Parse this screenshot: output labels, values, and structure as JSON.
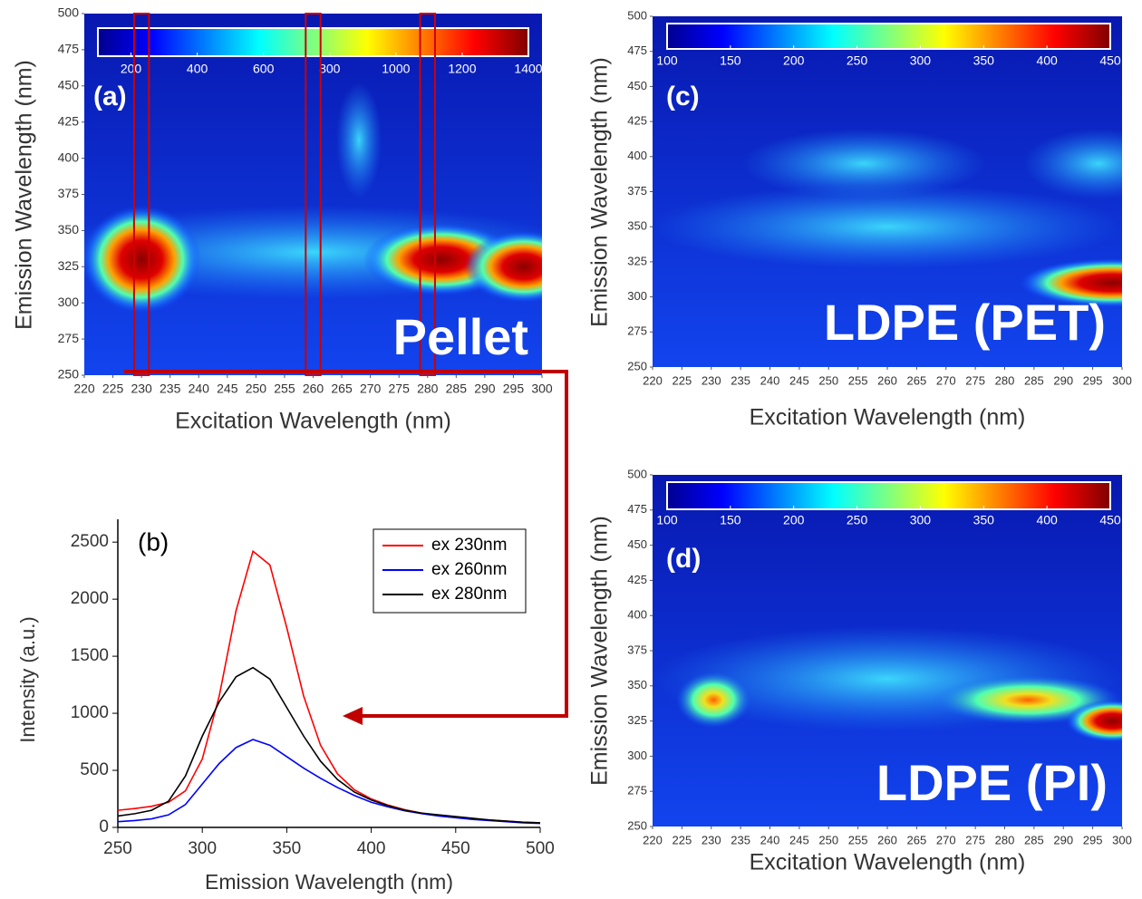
{
  "chart_data": [
    {
      "type": "heatmap",
      "xlabel": "Excitation Wavelength (nm)",
      "ylabel": "Emission Wavelength (nm)",
      "xlim": [
        220,
        300
      ],
      "xticks": [
        220,
        225,
        230,
        235,
        240,
        245,
        250,
        255,
        260,
        265,
        270,
        275,
        280,
        285,
        290,
        295,
        300
      ],
      "ylim": [
        250,
        500
      ],
      "yticks": [
        250,
        275,
        300,
        325,
        350,
        375,
        400,
        425,
        450,
        475,
        500
      ],
      "colorbar": {
        "lim": [
          100,
          1400
        ],
        "ticks": [
          200,
          400,
          600,
          800,
          1000,
          1200,
          1400
        ]
      },
      "highlight_x": [
        230,
        260,
        280
      ],
      "panel_label": "(a)",
      "sample_label": "Pellet"
    },
    {
      "type": "line",
      "xlabel": "Emission Wavelength (nm)",
      "ylabel": "Intensity (a.u.)",
      "xlim": [
        250,
        500
      ],
      "xticks": [
        250,
        300,
        350,
        400,
        450,
        500
      ],
      "ylim": [
        0,
        2700
      ],
      "yticks": [
        0,
        500,
        1000,
        1500,
        2000,
        2500
      ],
      "panel_label": "(b)",
      "legend": "upper right",
      "x": [
        250,
        260,
        270,
        280,
        290,
        300,
        310,
        320,
        330,
        340,
        350,
        360,
        370,
        380,
        390,
        400,
        410,
        420,
        430,
        440,
        450,
        460,
        470,
        480,
        490,
        500
      ],
      "series": [
        {
          "name": "ex 230nm",
          "color": "#ff0000",
          "values": [
            150,
            165,
            185,
            220,
            320,
            600,
            1150,
            1900,
            2420,
            2300,
            1750,
            1150,
            720,
            470,
            330,
            250,
            195,
            155,
            125,
            105,
            90,
            75,
            65,
            55,
            45,
            40
          ]
        },
        {
          "name": "ex 260nm",
          "color": "#0000ff",
          "values": [
            50,
            60,
            75,
            110,
            200,
            380,
            560,
            700,
            770,
            720,
            620,
            520,
            430,
            350,
            280,
            220,
            180,
            145,
            120,
            100,
            85,
            70,
            60,
            50,
            40,
            35
          ]
        },
        {
          "name": "ex 280nm",
          "color": "#000000",
          "values": [
            100,
            120,
            150,
            230,
            450,
            800,
            1100,
            1320,
            1400,
            1300,
            1050,
            800,
            580,
            420,
            310,
            240,
            190,
            150,
            125,
            110,
            95,
            80,
            65,
            55,
            45,
            40
          ]
        }
      ]
    },
    {
      "type": "heatmap",
      "xlabel": "Excitation Wavelength (nm)",
      "ylabel": "Emission Wavelength (nm)",
      "xlim": [
        220,
        300
      ],
      "xticks": [
        220,
        225,
        230,
        235,
        240,
        245,
        250,
        255,
        260,
        265,
        270,
        275,
        280,
        285,
        290,
        295,
        300
      ],
      "ylim": [
        250,
        500
      ],
      "yticks": [
        250,
        275,
        300,
        325,
        350,
        375,
        400,
        425,
        450,
        475,
        500
      ],
      "colorbar": {
        "lim": [
          100,
          450
        ],
        "ticks": [
          100,
          150,
          200,
          250,
          300,
          350,
          400,
          450
        ]
      },
      "panel_label": "(c)",
      "sample_label": "LDPE (PET)"
    },
    {
      "type": "heatmap",
      "xlabel": "Excitation Wavelength (nm)",
      "ylabel": "Emission Wavelength (nm)",
      "xlim": [
        220,
        300
      ],
      "xticks": [
        220,
        225,
        230,
        235,
        240,
        245,
        250,
        255,
        260,
        265,
        270,
        275,
        280,
        285,
        290,
        295,
        300
      ],
      "ylim": [
        250,
        500
      ],
      "yticks": [
        250,
        275,
        300,
        325,
        350,
        375,
        400,
        425,
        450,
        475,
        500
      ],
      "colorbar": {
        "lim": [
          100,
          450
        ],
        "ticks": [
          100,
          150,
          200,
          250,
          300,
          350,
          400,
          450
        ]
      },
      "panel_label": "(d)",
      "sample_label": "LDPE (PI)"
    }
  ]
}
